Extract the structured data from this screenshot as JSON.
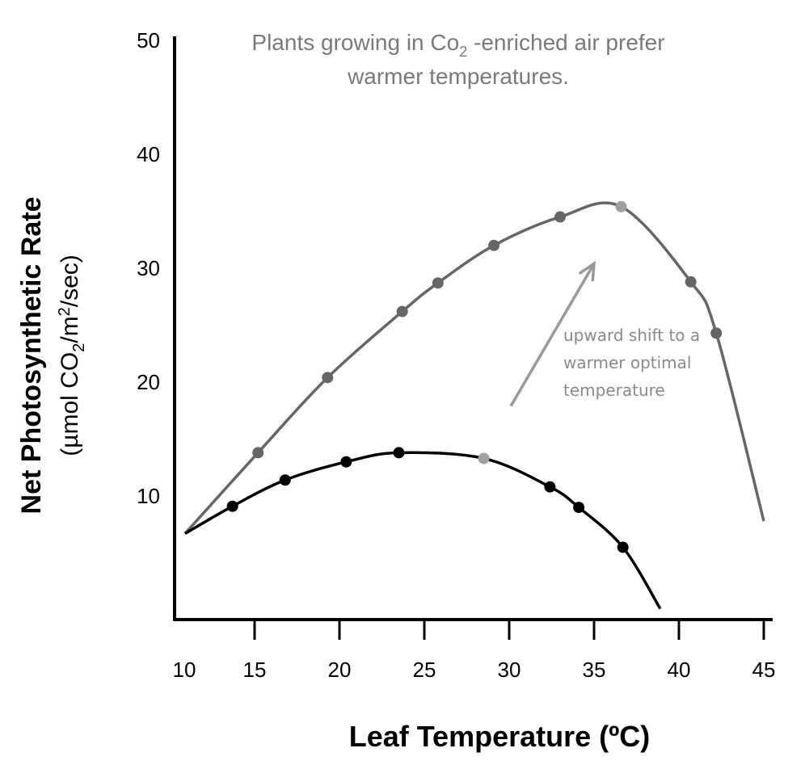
{
  "chart_data": {
    "type": "line",
    "title": "Plants growing in Co₂ -enriched air prefer warmer temperatures.",
    "title_lines": [
      "Plants growing in Co",
      "2",
      " -enriched air prefer",
      "warmer temperatures."
    ],
    "xlabel": "Leaf Temperature (ºC)",
    "ylabel": "Net Photosynthetic Rate",
    "ylabel_units": [
      "(µmol CO",
      "2",
      "/m",
      "2",
      "/sec)"
    ],
    "xlim": [
      10,
      45
    ],
    "ylim": [
      0,
      50
    ],
    "xticks": [
      10,
      15,
      20,
      25,
      30,
      35,
      40,
      45
    ],
    "yticks": [
      10,
      20,
      30,
      40,
      50
    ],
    "grid": false,
    "series": [
      {
        "color": "#666666",
        "curve": [
          [
            10.9,
            6.7
          ],
          [
            15.2,
            13.8
          ],
          [
            19.3,
            20.4
          ],
          [
            23.7,
            26.2
          ],
          [
            25.8,
            28.7
          ],
          [
            29.1,
            32.0
          ],
          [
            33.0,
            34.5
          ],
          [
            36.6,
            35.4
          ],
          [
            40.7,
            28.8
          ],
          [
            42.2,
            24.3
          ],
          [
            45.0,
            7.8
          ]
        ],
        "points": [
          [
            15.2,
            13.8
          ],
          [
            19.3,
            20.4
          ],
          [
            23.7,
            26.2
          ],
          [
            25.8,
            28.7
          ],
          [
            29.1,
            32.0
          ],
          [
            33.0,
            34.5
          ],
          [
            40.7,
            28.8
          ],
          [
            42.2,
            24.3
          ]
        ],
        "optimum": [
          36.6,
          35.4
        ]
      },
      {
        "color": "#000000",
        "curve": [
          [
            10.9,
            6.7
          ],
          [
            13.7,
            9.1
          ],
          [
            16.8,
            11.4
          ],
          [
            20.4,
            13.0
          ],
          [
            23.5,
            13.8
          ],
          [
            28.5,
            13.3
          ],
          [
            32.4,
            10.8
          ],
          [
            34.1,
            9.0
          ],
          [
            36.7,
            5.5
          ],
          [
            38.9,
            0.1
          ]
        ],
        "points": [
          [
            13.7,
            9.1
          ],
          [
            16.8,
            11.4
          ],
          [
            20.4,
            13.0
          ],
          [
            23.5,
            13.8
          ],
          [
            32.4,
            10.8
          ],
          [
            34.1,
            9.0
          ],
          [
            36.7,
            5.5
          ]
        ],
        "optimum": [
          28.5,
          13.3
        ]
      }
    ],
    "optimum_color": "#a0a0a0",
    "annotation": {
      "lines": [
        "upward shift to a",
        "warmer optimal",
        "temperature"
      ],
      "arrow_from": [
        30.1,
        17.9
      ],
      "arrow_to": [
        35.0,
        30.4
      ],
      "color": "#999999"
    }
  }
}
